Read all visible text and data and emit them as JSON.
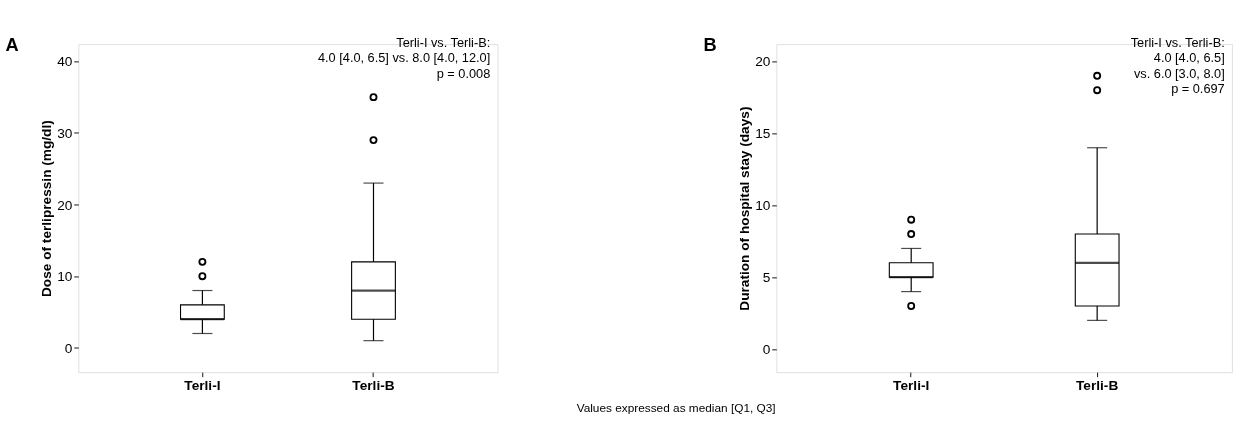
{
  "chart_data": [
    {
      "type": "box",
      "ylabel": "Dose of terlipressin (mg/dl)",
      "categories": [
        "Terli-I",
        "Terli-B"
      ],
      "boxes": [
        {
          "low": 2,
          "q1": 4,
          "median": 4,
          "q3": 6,
          "high": 8,
          "outliers": [
            10,
            12
          ]
        },
        {
          "low": 1,
          "q1": 4,
          "median": 8,
          "q3": 12,
          "high": 23,
          "outliers": [
            29,
            35
          ]
        }
      ],
      "ylim": [
        -3.4,
        42.4
      ],
      "yticks": [
        0,
        10,
        20,
        30,
        40
      ],
      "grid": false,
      "annotations": [
        "A",
        "Terli-I vs. Terli-B:\n4.0 [4.0, 6.5] vs. 8.0 [4.0, 12.0]\np = 0.008"
      ]
    },
    {
      "type": "box",
      "ylabel": "Duration of hospital stay (days)",
      "categories": [
        "Terli-I",
        "Terli-B"
      ],
      "boxes": [
        {
          "low": 4,
          "q1": 5,
          "median": 5,
          "q3": 6,
          "high": 7,
          "outliers": [
            3,
            8,
            9
          ]
        },
        {
          "low": 2,
          "q1": 3,
          "median": 6,
          "q3": 8,
          "high": 14,
          "outliers": [
            18,
            19
          ]
        }
      ],
      "ylim": [
        -1.6,
        21.2
      ],
      "yticks": [
        0,
        5,
        10,
        15,
        20
      ],
      "grid": false,
      "annotations": [
        "B",
        "Terli-I vs. Terli-B:\n4.0 [4.0, 6.5]\nvs. 6.0 [3.0, 8.0]\np = 0.697",
        "Values expressed as median [Q1, Q3]"
      ]
    }
  ]
}
